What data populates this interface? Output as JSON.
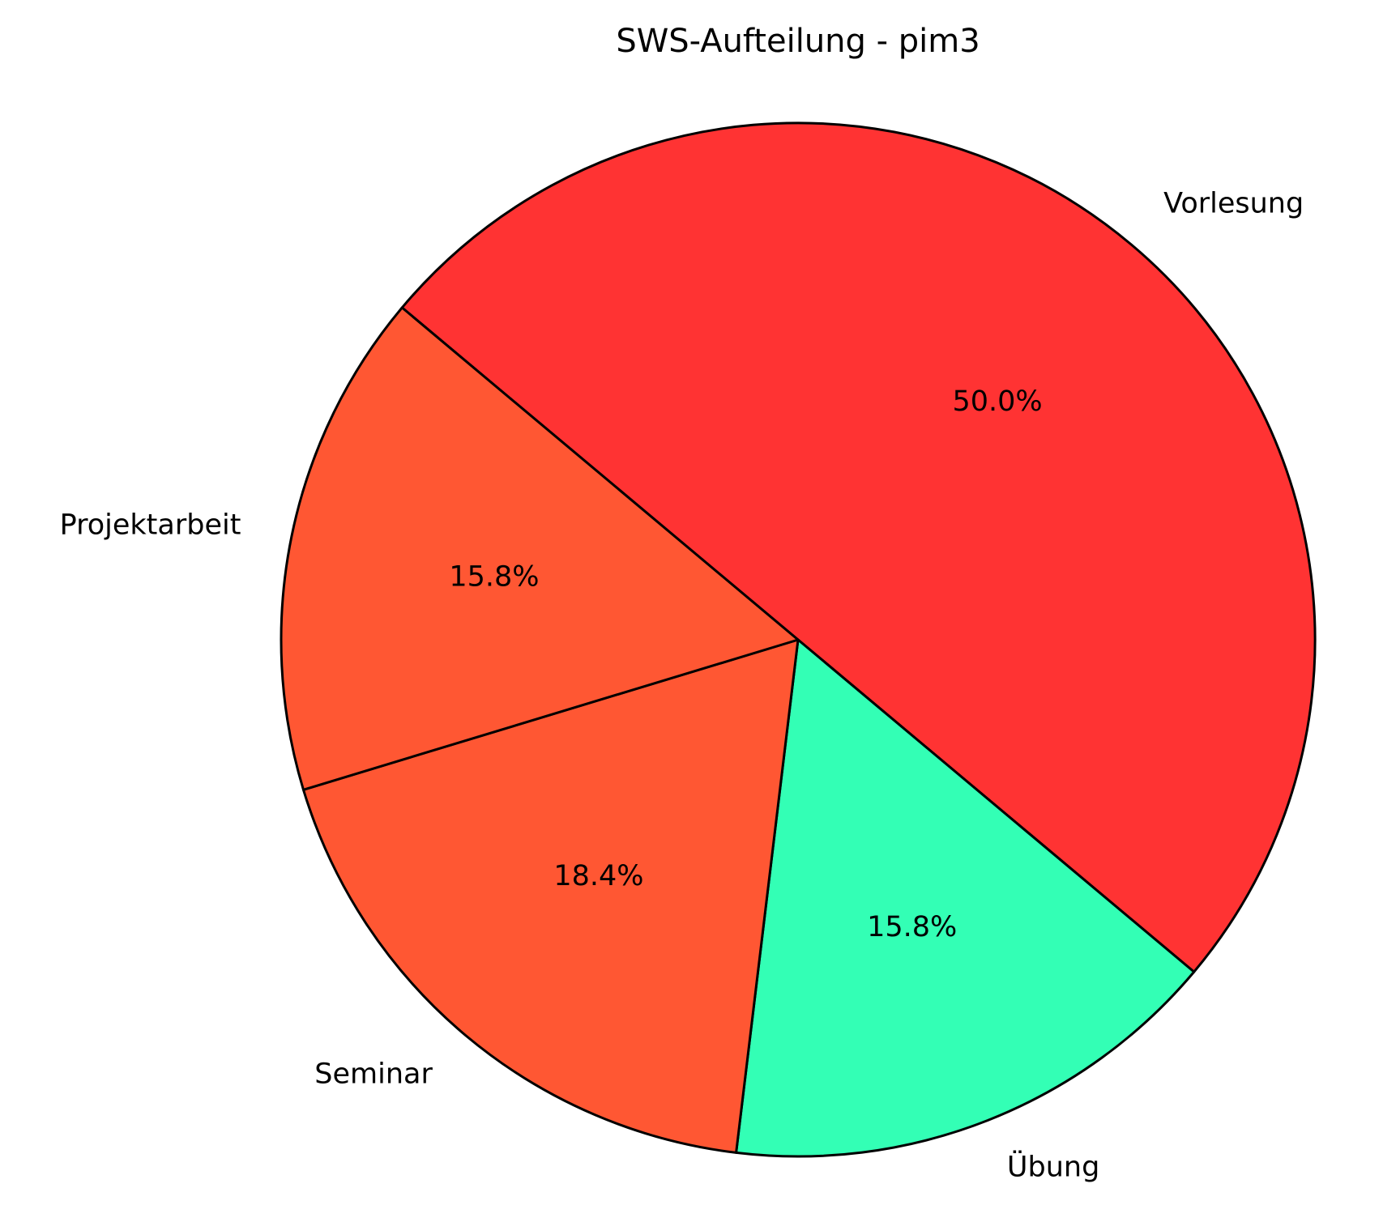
{
  "chart_data": {
    "type": "pie",
    "title": "SWS-Aufteilung - pim3",
    "categories": [
      "Vorlesung",
      "Übung",
      "Seminar",
      "Projektarbeit"
    ],
    "values": [
      50.0,
      15.8,
      18.4,
      15.8
    ],
    "value_labels": [
      "50.0%",
      "15.8%",
      "18.4%",
      "15.8%"
    ],
    "colors": [
      "#ff3333",
      "#33ffb5",
      "#ff5733",
      "#ff5733"
    ],
    "startangle": 140,
    "counterclock": false
  }
}
